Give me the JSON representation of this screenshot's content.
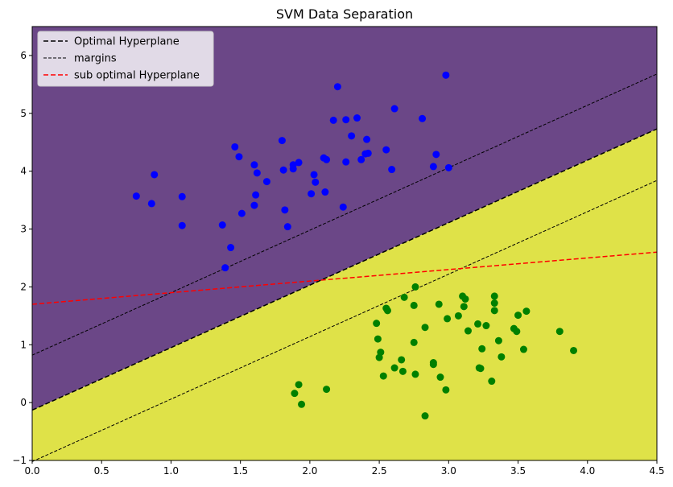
{
  "chart_data": {
    "type": "scatter",
    "title": "SVM Data Separation",
    "xlabel": "",
    "ylabel": "",
    "xlim": [
      0.0,
      4.5
    ],
    "ylim": [
      -1,
      6.5
    ],
    "xticks": [
      0.0,
      0.5,
      1.0,
      1.5,
      2.0,
      2.5,
      3.0,
      3.5,
      4.0,
      4.5
    ],
    "xtick_labels": [
      "0.0",
      "0.5",
      "1.0",
      "1.5",
      "2.0",
      "2.5",
      "3.0",
      "3.5",
      "4.0",
      "4.5"
    ],
    "yticks": [
      -1,
      0,
      1,
      2,
      3,
      4,
      5,
      6
    ],
    "ytick_labels": [
      "−1",
      "0",
      "1",
      "2",
      "3",
      "4",
      "5",
      "6"
    ],
    "grid": false,
    "legend_position": "top-left",
    "regions": [
      {
        "class": "upper",
        "color": "#6b4787"
      },
      {
        "class": "lower",
        "color": "#dfe248"
      }
    ],
    "lines": [
      {
        "name": "Optimal Hyperplane",
        "intercept": -0.13,
        "slope": 1.08,
        "color": "#000000",
        "style": "dashed",
        "width": 1.5
      },
      {
        "name": "margins",
        "intercept": 0.82,
        "slope": 1.08,
        "color": "#000000",
        "style": "dashed",
        "width": 1.0
      },
      {
        "name": "",
        "intercept": -1.02,
        "slope": 1.08,
        "color": "#000000",
        "style": "dashed",
        "width": 1.0
      },
      {
        "name": "sub optimal Hyperplane",
        "intercept": 1.7,
        "slope": 0.2,
        "color": "#ff0000",
        "style": "dashed",
        "width": 1.5
      }
    ],
    "legend": [
      "Optimal Hyperplane",
      "margins",
      "sub optimal Hyperplane"
    ],
    "series": [
      {
        "color": "#0000ff",
        "points": [
          [
            0.75,
            3.57
          ],
          [
            0.86,
            3.44
          ],
          [
            0.88,
            3.94
          ],
          [
            1.08,
            3.56
          ],
          [
            1.08,
            3.06
          ],
          [
            1.37,
            3.07
          ],
          [
            1.39,
            2.33
          ],
          [
            1.43,
            2.68
          ],
          [
            1.46,
            4.42
          ],
          [
            1.49,
            4.25
          ],
          [
            1.51,
            3.27
          ],
          [
            1.6,
            4.11
          ],
          [
            1.6,
            3.41
          ],
          [
            1.61,
            3.59
          ],
          [
            1.62,
            3.97
          ],
          [
            1.69,
            3.82
          ],
          [
            1.8,
            4.53
          ],
          [
            1.81,
            4.02
          ],
          [
            1.82,
            3.33
          ],
          [
            1.84,
            3.04
          ],
          [
            1.88,
            4.11
          ],
          [
            1.88,
            4.04
          ],
          [
            1.92,
            4.15
          ],
          [
            2.01,
            3.61
          ],
          [
            2.03,
            3.94
          ],
          [
            2.04,
            3.81
          ],
          [
            2.1,
            4.23
          ],
          [
            2.12,
            4.2
          ],
          [
            2.11,
            3.64
          ],
          [
            2.17,
            4.88
          ],
          [
            2.2,
            5.46
          ],
          [
            2.24,
            3.38
          ],
          [
            2.26,
            4.89
          ],
          [
            2.26,
            4.16
          ],
          [
            2.3,
            4.61
          ],
          [
            2.34,
            4.92
          ],
          [
            2.37,
            4.2
          ],
          [
            2.4,
            4.3
          ],
          [
            2.41,
            4.55
          ],
          [
            2.42,
            4.31
          ],
          [
            2.55,
            4.37
          ],
          [
            2.59,
            4.03
          ],
          [
            2.61,
            5.08
          ],
          [
            2.81,
            4.91
          ],
          [
            2.89,
            4.08
          ],
          [
            2.91,
            4.29
          ],
          [
            2.98,
            5.66
          ],
          [
            3.0,
            4.06
          ]
        ]
      },
      {
        "color": "#008000",
        "points": [
          [
            1.89,
            0.16
          ],
          [
            1.92,
            0.31
          ],
          [
            1.94,
            -0.03
          ],
          [
            2.12,
            0.23
          ],
          [
            2.48,
            1.37
          ],
          [
            2.49,
            1.1
          ],
          [
            2.5,
            0.78
          ],
          [
            2.51,
            0.87
          ],
          [
            2.53,
            0.46
          ],
          [
            2.55,
            1.63
          ],
          [
            2.56,
            1.59
          ],
          [
            2.61,
            0.6
          ],
          [
            2.66,
            0.74
          ],
          [
            2.67,
            0.54
          ],
          [
            2.68,
            1.82
          ],
          [
            2.75,
            1.68
          ],
          [
            2.75,
            1.04
          ],
          [
            2.76,
            2.0
          ],
          [
            2.76,
            0.49
          ],
          [
            2.83,
            1.3
          ],
          [
            2.83,
            -0.23
          ],
          [
            2.89,
            0.69
          ],
          [
            2.89,
            0.66
          ],
          [
            2.93,
            1.7
          ],
          [
            2.94,
            0.44
          ],
          [
            2.98,
            0.22
          ],
          [
            2.99,
            1.45
          ],
          [
            3.07,
            1.5
          ],
          [
            3.1,
            1.84
          ],
          [
            3.11,
            1.66
          ],
          [
            3.12,
            1.79
          ],
          [
            3.14,
            1.24
          ],
          [
            3.21,
            1.36
          ],
          [
            3.22,
            0.6
          ],
          [
            3.23,
            0.59
          ],
          [
            3.24,
            0.93
          ],
          [
            3.27,
            1.33
          ],
          [
            3.31,
            0.37
          ],
          [
            3.33,
            1.72
          ],
          [
            3.33,
            1.84
          ],
          [
            3.33,
            1.59
          ],
          [
            3.36,
            1.07
          ],
          [
            3.38,
            0.79
          ],
          [
            3.47,
            1.28
          ],
          [
            3.49,
            1.23
          ],
          [
            3.5,
            1.51
          ],
          [
            3.54,
            0.92
          ],
          [
            3.56,
            1.58
          ],
          [
            3.8,
            1.23
          ],
          [
            3.9,
            0.9
          ]
        ]
      }
    ]
  }
}
